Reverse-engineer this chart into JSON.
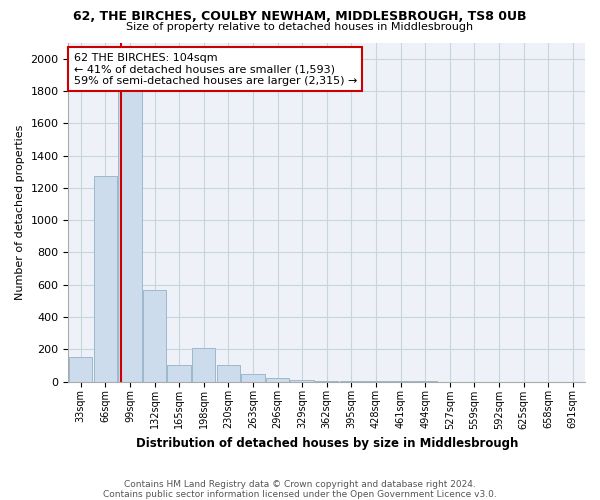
{
  "title_line1": "62, THE BIRCHES, COULBY NEWHAM, MIDDLESBROUGH, TS8 0UB",
  "title_line2": "Size of property relative to detached houses in Middlesbrough",
  "xlabel": "Distribution of detached houses by size in Middlesbrough",
  "ylabel": "Number of detached properties",
  "footer_line1": "Contains HM Land Registry data © Crown copyright and database right 2024.",
  "footer_line2": "Contains public sector information licensed under the Open Government Licence v3.0.",
  "annotation_line1": "62 THE BIRCHES: 104sqm",
  "annotation_line2": "← 41% of detached houses are smaller (1,593)",
  "annotation_line3": "59% of semi-detached houses are larger (2,315) →",
  "categories": [
    "33sqm",
    "66sqm",
    "99sqm",
    "132sqm",
    "165sqm",
    "198sqm",
    "230sqm",
    "263sqm",
    "296sqm",
    "329sqm",
    "362sqm",
    "395sqm",
    "428sqm",
    "461sqm",
    "494sqm",
    "527sqm",
    "559sqm",
    "592sqm",
    "625sqm",
    "658sqm",
    "691sqm"
  ],
  "values": [
    150,
    1270,
    1800,
    570,
    100,
    210,
    105,
    45,
    20,
    10,
    5,
    3,
    2,
    1,
    1,
    0,
    0,
    0,
    0,
    0,
    0
  ],
  "bar_color": "#ccdcec",
  "bar_edgecolor": "#9ab8cc",
  "marker_line_color": "#cc0000",
  "annotation_box_edgecolor": "#cc0000",
  "annotation_box_facecolor": "#ffffff",
  "grid_color": "#c8d4de",
  "bg_color": "#eef2f8",
  "ylim": [
    0,
    2100
  ],
  "yticks": [
    0,
    200,
    400,
    600,
    800,
    1000,
    1200,
    1400,
    1600,
    1800,
    2000
  ],
  "marker_bin_index": 2,
  "figsize": [
    6.0,
    5.0
  ],
  "dpi": 100
}
